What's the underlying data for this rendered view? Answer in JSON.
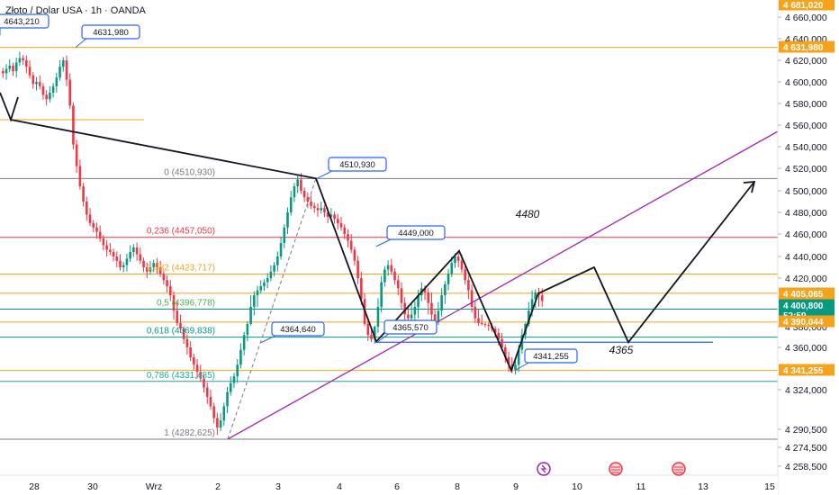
{
  "header": {
    "symbol": "Złoto / Dolar USA · 1h · OANDA"
  },
  "colors": {
    "up": "#089981",
    "down": "#f23645",
    "orange": "#f7a21b",
    "purple": "#9c27b0",
    "blue": "#2962ff",
    "red_line": "#f23645",
    "teal": "#26a69a",
    "fib_gray": "#9598a1"
  },
  "chart_data": {
    "type": "candlestick",
    "instrument": "Złoto / Dolar USA",
    "timeframe": "1h",
    "source": "OANDA",
    "x_ticks": [
      "28",
      "30",
      "Wrz",
      "2",
      "3",
      "4",
      "6",
      "8",
      "9",
      "10",
      "11",
      "13",
      "15"
    ],
    "y_ticks": [
      "4 660,000",
      "4 640,000",
      "4 620,000",
      "4 600,000",
      "4 580,000",
      "4 560,000",
      "4 540,000",
      "4 520,000",
      "4 500,000",
      "4 480,000",
      "4 460,000",
      "4 440,000",
      "4 420,000",
      "4 380,000",
      "4 360,000",
      "4 324,000",
      "4 290,500",
      "4 274,500",
      "4 258,500"
    ],
    "y_range": [
      4252,
      4684
    ],
    "price_labels": [
      {
        "text": "4 681,020",
        "value": 4681.02,
        "color": "#f7a21b"
      },
      {
        "text": "4 631,980",
        "value": 4631.98,
        "color": "#f7a21b"
      },
      {
        "text": "4 405,065",
        "value": 4405.065,
        "color": "#f7a21b"
      },
      {
        "text": "4 400,800",
        "value": 4400.8,
        "color": "#089981",
        "countdown": "52:59"
      },
      {
        "text": "4 390,044",
        "value": 4390.044,
        "color": "#f7a21b"
      },
      {
        "text": "4 341,255",
        "value": 4341.255,
        "color": "#f7a21b"
      }
    ],
    "fib_levels": [
      {
        "ratio": "0",
        "text": "0 (4510,930)",
        "value": 4510.93,
        "color": "#787b86"
      },
      {
        "ratio": "0.236",
        "text": "0,236 (4457,050)",
        "value": 4457.05,
        "color": "#f23645"
      },
      {
        "ratio": "0.382",
        "text": "0,382 (4423,717)",
        "value": 4423.717,
        "color": "#f7a21b"
      },
      {
        "ratio": "0.5",
        "text": "0,5 (4396,778)",
        "value": 4396.778,
        "color": "#4caf50"
      },
      {
        "ratio": "0.618",
        "text": "0,618 (4369,838)",
        "value": 4369.838,
        "color": "#089981"
      },
      {
        "ratio": "0.786",
        "text": "0,786 (4331,485)",
        "value": 4331.485,
        "color": "#26a69a"
      },
      {
        "ratio": "1",
        "text": "1 (4282,625)",
        "value": 4282.625,
        "color": "#787b86"
      }
    ],
    "callouts": [
      {
        "text": "4643,210",
        "value": 4643.21
      },
      {
        "text": "4631,980",
        "value": 4631.98
      },
      {
        "text": "4510,930",
        "value": 4510.93
      },
      {
        "text": "4449,000",
        "value": 4449.0
      },
      {
        "text": "4364,640",
        "value": 4364.64
      },
      {
        "text": "4365,570",
        "value": 4365.57
      },
      {
        "text": "4341,255",
        "value": 4341.255
      }
    ],
    "annotations": [
      {
        "text": "4480",
        "value": 4480
      },
      {
        "text": "4365",
        "value": 4365
      }
    ],
    "horizontal_lines": [
      {
        "value": 4631.98,
        "color": "#f7a21b"
      },
      {
        "value": 4565,
        "color": "#f7a21b"
      },
      {
        "value": 4510.93,
        "color": "#787b86"
      },
      {
        "value": 4457.05,
        "color": "#f23645"
      },
      {
        "value": 4423.717,
        "color": "#f7a21b"
      },
      {
        "value": 4405.065,
        "color": "#f7a21b"
      },
      {
        "value": 4396.778,
        "color": "#089981"
      },
      {
        "value": 4390.044,
        "color": "#f7a21b"
      },
      {
        "value": 4369.838,
        "color": "#089981"
      },
      {
        "value": 4341.255,
        "color": "#f7a21b"
      },
      {
        "value": 4331.485,
        "color": "#26a69a"
      },
      {
        "value": 4282.625,
        "color": "#787b86"
      },
      {
        "value": 4365,
        "color": "#2962ff"
      }
    ],
    "trend_line": {
      "from_value": 4282.625,
      "to_value": 4553,
      "color": "#9c27b0"
    },
    "zigzag_path": [
      4565,
      4510.93,
      4365.57,
      4445,
      4341.255,
      4405,
      4430,
      4365,
      4508
    ],
    "closes": [
      4608,
      4612,
      4615,
      4610,
      4618,
      4622,
      4620,
      4614,
      4606,
      4598,
      4600,
      4596,
      4588,
      4584,
      4590,
      4596,
      4604,
      4614,
      4620,
      4602,
      4578,
      4542,
      4522,
      4504,
      4490,
      4478,
      4470,
      4466,
      4462,
      4456,
      4450,
      4446,
      4444,
      4440,
      4436,
      4430,
      4432,
      4438,
      4444,
      4448,
      4442,
      4436,
      4430,
      4426,
      4430,
      4434,
      4430,
      4424,
      4418,
      4412,
      4404,
      4396,
      4388,
      4378,
      4368,
      4360,
      4352,
      4346,
      4340,
      4334,
      4326,
      4318,
      4310,
      4300,
      4292,
      4298,
      4310,
      4322,
      4330,
      4336,
      4346,
      4358,
      4372,
      4386,
      4398,
      4404,
      4408,
      4412,
      4416,
      4420,
      4426,
      4432,
      4440,
      4452,
      4466,
      4480,
      4494,
      4504,
      4510,
      4500,
      4494,
      4490,
      4486,
      4484,
      4482,
      4484,
      4480,
      4476,
      4478,
      4474,
      4470,
      4466,
      4460,
      4454,
      4446,
      4436,
      4420,
      4402,
      4386,
      4372,
      4368,
      4380,
      4398,
      4416,
      4428,
      4432,
      4426,
      4418,
      4410,
      4400,
      4394,
      4392,
      4394,
      4398,
      4404,
      4410,
      4406,
      4400,
      4394,
      4390,
      4396,
      4404,
      4414,
      4424,
      4434,
      4440,
      4436,
      4428,
      4418,
      4408,
      4398,
      4392,
      4388,
      4386,
      4384,
      4382,
      4378,
      4374,
      4368,
      4360,
      4352,
      4346,
      4342,
      4346,
      4358,
      4372,
      4386,
      4396,
      4402,
      4406,
      4404,
      4401
    ]
  }
}
